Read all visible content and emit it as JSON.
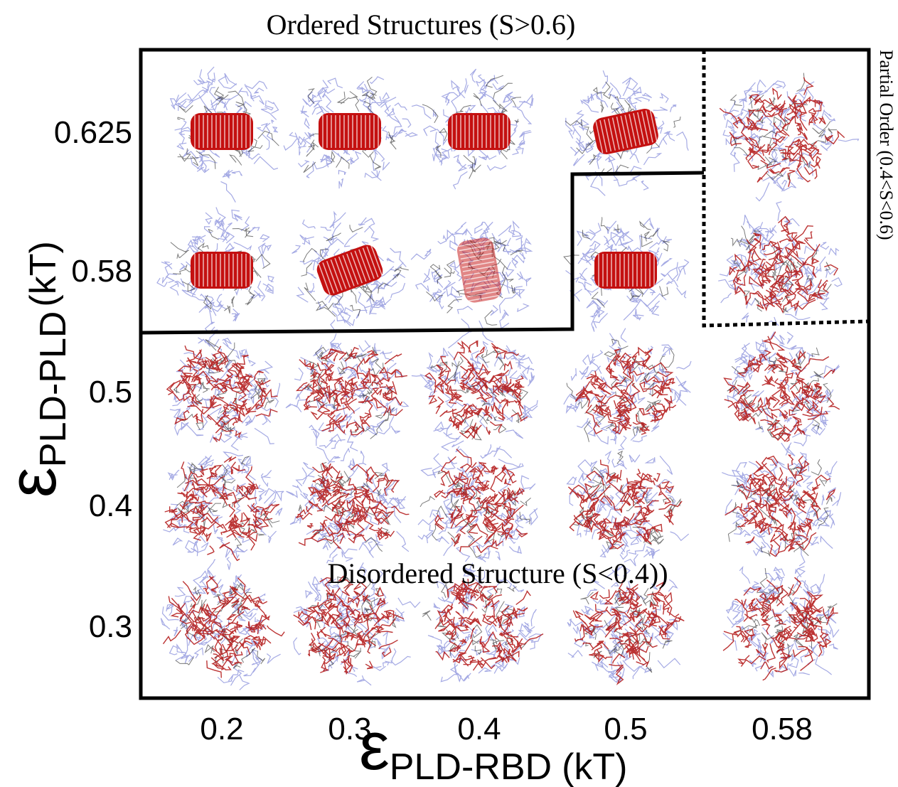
{
  "figure": {
    "regions": {
      "ordered": "Ordered Structures (S>0.6)",
      "partial": "Partial Order (0.4<S<0.6)",
      "disordered": "Disordered Structure (S<0.4))"
    },
    "y_axis": {
      "symbol": "ε",
      "subscript": "PLD-PLD",
      "unit": "(kT)",
      "ticks": [
        "0.625",
        "0.58",
        "0.5",
        "0.4",
        "0.3"
      ]
    },
    "x_axis": {
      "symbol": "ε",
      "subscript": "PLD-RBD",
      "unit": "(kT)",
      "ticks": [
        "0.2",
        "0.3",
        "0.4",
        "0.5",
        "0.58"
      ]
    }
  }
}
